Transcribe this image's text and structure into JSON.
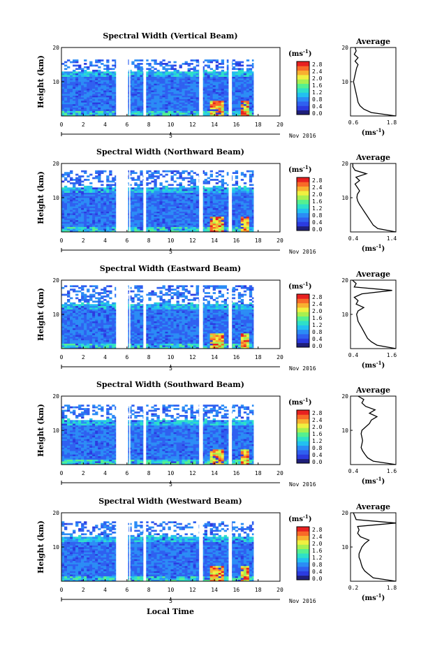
{
  "chart_data": {
    "type": "heatmap",
    "panels": [
      {
        "title": "Spectral Width (Vertical Beam)",
        "avg_xlim": [
          0.6,
          1.8
        ],
        "avg_xticks": [
          "0.6",
          "1.8"
        ],
        "avg_profile": [
          [
            0,
            1.8
          ],
          [
            1,
            1.15
          ],
          [
            2,
            0.95
          ],
          [
            3,
            0.85
          ],
          [
            4,
            0.8
          ],
          [
            5,
            0.78
          ],
          [
            6,
            0.76
          ],
          [
            7,
            0.74
          ],
          [
            8,
            0.72
          ],
          [
            9,
            0.7
          ],
          [
            10,
            0.68
          ],
          [
            11,
            0.7
          ],
          [
            12,
            0.72
          ],
          [
            13,
            0.74
          ],
          [
            14,
            0.76
          ],
          [
            15,
            0.8
          ],
          [
            16,
            0.72
          ],
          [
            17,
            0.8
          ],
          [
            18,
            0.7
          ],
          [
            19,
            0.75
          ],
          [
            20,
            0.72
          ]
        ]
      },
      {
        "title": "Spectral Width (Northward Beam)",
        "avg_xlim": [
          0.4,
          1.4
        ],
        "avg_xticks": [
          "0.4",
          "1.4"
        ],
        "avg_profile": [
          [
            0,
            1.4
          ],
          [
            1,
            1.0
          ],
          [
            2,
            0.9
          ],
          [
            3,
            0.85
          ],
          [
            4,
            0.8
          ],
          [
            5,
            0.75
          ],
          [
            6,
            0.7
          ],
          [
            7,
            0.65
          ],
          [
            8,
            0.6
          ],
          [
            9,
            0.56
          ],
          [
            10,
            0.54
          ],
          [
            11,
            0.55
          ],
          [
            12,
            0.6
          ],
          [
            13,
            0.55
          ],
          [
            14,
            0.5
          ],
          [
            15,
            0.6
          ],
          [
            16,
            0.52
          ],
          [
            17,
            0.75
          ],
          [
            18,
            0.5
          ],
          [
            19,
            0.45
          ],
          [
            20,
            0.45
          ]
        ]
      },
      {
        "title": "Spectral Width (Eastward Beam)",
        "avg_xlim": [
          0.4,
          1.6
        ],
        "avg_xticks": [
          "0.4",
          "1.6"
        ],
        "avg_profile": [
          [
            0,
            1.6
          ],
          [
            1,
            1.1
          ],
          [
            2,
            0.95
          ],
          [
            3,
            0.85
          ],
          [
            4,
            0.8
          ],
          [
            5,
            0.75
          ],
          [
            6,
            0.7
          ],
          [
            7,
            0.65
          ],
          [
            8,
            0.6
          ],
          [
            9,
            0.58
          ],
          [
            10,
            0.56
          ],
          [
            11,
            0.6
          ],
          [
            12,
            0.75
          ],
          [
            13,
            0.55
          ],
          [
            14,
            0.6
          ],
          [
            15,
            0.5
          ],
          [
            16,
            0.7
          ],
          [
            17,
            1.5
          ],
          [
            18,
            0.5
          ],
          [
            19,
            0.55
          ],
          [
            20,
            0.45
          ]
        ]
      },
      {
        "title": "Spectral Width (Southward Beam)",
        "avg_xlim": [
          0.4,
          1.6
        ],
        "avg_xticks": [
          "0.4",
          "1.6"
        ],
        "avg_profile": [
          [
            0,
            1.6
          ],
          [
            1,
            1.0
          ],
          [
            2,
            0.85
          ],
          [
            3,
            0.78
          ],
          [
            4,
            0.72
          ],
          [
            5,
            0.68
          ],
          [
            6,
            0.7
          ],
          [
            7,
            0.72
          ],
          [
            8,
            0.7
          ],
          [
            9,
            0.68
          ],
          [
            10,
            0.7
          ],
          [
            11,
            0.8
          ],
          [
            12,
            0.9
          ],
          [
            13,
            0.95
          ],
          [
            14,
            1.1
          ],
          [
            15,
            0.9
          ],
          [
            16,
            1.05
          ],
          [
            17,
            0.8
          ],
          [
            18,
            0.7
          ],
          [
            19,
            0.75
          ],
          [
            20,
            0.6
          ]
        ]
      },
      {
        "title": "Spectral Width (Westward Beam)",
        "avg_xlim": [
          0.2,
          1.8
        ],
        "avg_xticks": [
          "0.2",
          "1.8"
        ],
        "avg_profile": [
          [
            0,
            1.8
          ],
          [
            1,
            1.0
          ],
          [
            2,
            0.85
          ],
          [
            3,
            0.7
          ],
          [
            4,
            0.62
          ],
          [
            5,
            0.58
          ],
          [
            6,
            0.55
          ],
          [
            7,
            0.5
          ],
          [
            8,
            0.5
          ],
          [
            9,
            0.55
          ],
          [
            10,
            0.6
          ],
          [
            11,
            0.7
          ],
          [
            12,
            0.85
          ],
          [
            13,
            0.55
          ],
          [
            14,
            0.45
          ],
          [
            15,
            0.5
          ],
          [
            16,
            0.45
          ],
          [
            17,
            1.8
          ],
          [
            18,
            0.4
          ],
          [
            19,
            0.35
          ],
          [
            20,
            0.3
          ]
        ]
      }
    ],
    "ylabel": "Height (km)",
    "yticks": [
      "20",
      "10"
    ],
    "ylim": [
      0,
      20
    ],
    "x_ticks": [
      "0",
      "2",
      "4",
      "6",
      "8",
      "10",
      "12",
      "14",
      "16",
      "18",
      "20"
    ],
    "xlim": [
      0,
      20
    ],
    "date_marker": "5",
    "date_label": "Nov 2016",
    "xlabel": "Local Time",
    "colorbar_unit_base": "(ms",
    "colorbar_unit_sup": "-1",
    "colorbar_unit_close": ")",
    "colorbar_ticks": [
      "2.8",
      "2.4",
      "2.0",
      "1.6",
      "1.2",
      "0.8",
      "0.4",
      "0.0"
    ],
    "avg_title": "Average",
    "avg_yticks": [
      "20",
      "10"
    ],
    "data_gaps": [
      [
        5.0,
        6.1
      ],
      [
        6.2,
        6.3
      ],
      [
        7.5,
        7.75
      ],
      [
        12.6,
        12.95
      ],
      [
        15.3,
        15.6
      ],
      [
        17.6,
        20
      ]
    ],
    "colors": [
      "#1f1f7a",
      "#2b3be0",
      "#2f60f0",
      "#2b8cf5",
      "#22c0f0",
      "#2ee0c8",
      "#55f090",
      "#a8f050",
      "#f0f040",
      "#f8b030",
      "#f86a28",
      "#e82020"
    ]
  }
}
